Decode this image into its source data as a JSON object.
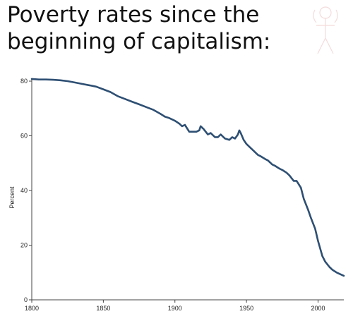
{
  "title_lines": [
    "Poverty rates since the",
    "beginning of capitalism:"
  ],
  "chart_data": {
    "type": "line",
    "title": "Poverty rates since the beginning of capitalism:",
    "xlabel": "",
    "ylabel": "Percent",
    "xlim": [
      1800,
      2018
    ],
    "ylim": [
      0,
      80
    ],
    "x_ticks": [
      "1800",
      "1850",
      "1900",
      "1950",
      "2000"
    ],
    "y_ticks": [
      "0",
      "20",
      "40",
      "60",
      "80"
    ],
    "grid": false,
    "line_color": "#2e4f73",
    "series": [
      {
        "x": [
          1800,
          1805,
          1810,
          1815,
          1820,
          1825,
          1830,
          1835,
          1840,
          1845,
          1850,
          1855,
          1860,
          1865,
          1870,
          1875,
          1880,
          1885,
          1890,
          1893,
          1896,
          1900,
          1903,
          1905,
          1907,
          1910,
          1913,
          1915,
          1917,
          1918,
          1920,
          1923,
          1925,
          1928,
          1930,
          1932,
          1935,
          1938,
          1940,
          1942,
          1944,
          1945,
          1946,
          1948,
          1950,
          1953,
          1955,
          1958,
          1960,
          1963,
          1965,
          1968,
          1970,
          1973,
          1975,
          1978,
          1980,
          1983,
          1985,
          1988,
          1990,
          1993,
          1995,
          1998,
          2000,
          2003,
          2005,
          2008,
          2010,
          2013,
          2015,
          2018
        ],
        "y": [
          80.8,
          80.6,
          80.6,
          80.5,
          80.3,
          80.0,
          79.5,
          79.0,
          78.5,
          78.0,
          77.0,
          76.0,
          74.5,
          73.5,
          72.5,
          71.5,
          70.5,
          69.5,
          68.0,
          67.0,
          66.5,
          65.5,
          64.5,
          63.5,
          64.0,
          61.5,
          61.5,
          61.5,
          62.0,
          63.5,
          62.5,
          60.5,
          61.0,
          59.5,
          59.5,
          60.5,
          59.0,
          58.5,
          59.5,
          59.0,
          60.5,
          62.0,
          61.0,
          58.5,
          57.0,
          55.5,
          54.5,
          53.0,
          52.5,
          51.5,
          51.0,
          49.5,
          49.0,
          48.0,
          47.5,
          46.5,
          45.5,
          43.5,
          43.5,
          41.0,
          37.0,
          33.0,
          30.0,
          26.0,
          21.5,
          16.0,
          14.0,
          12.0,
          11.0,
          10.0,
          9.5,
          8.8
        ]
      }
    ]
  }
}
